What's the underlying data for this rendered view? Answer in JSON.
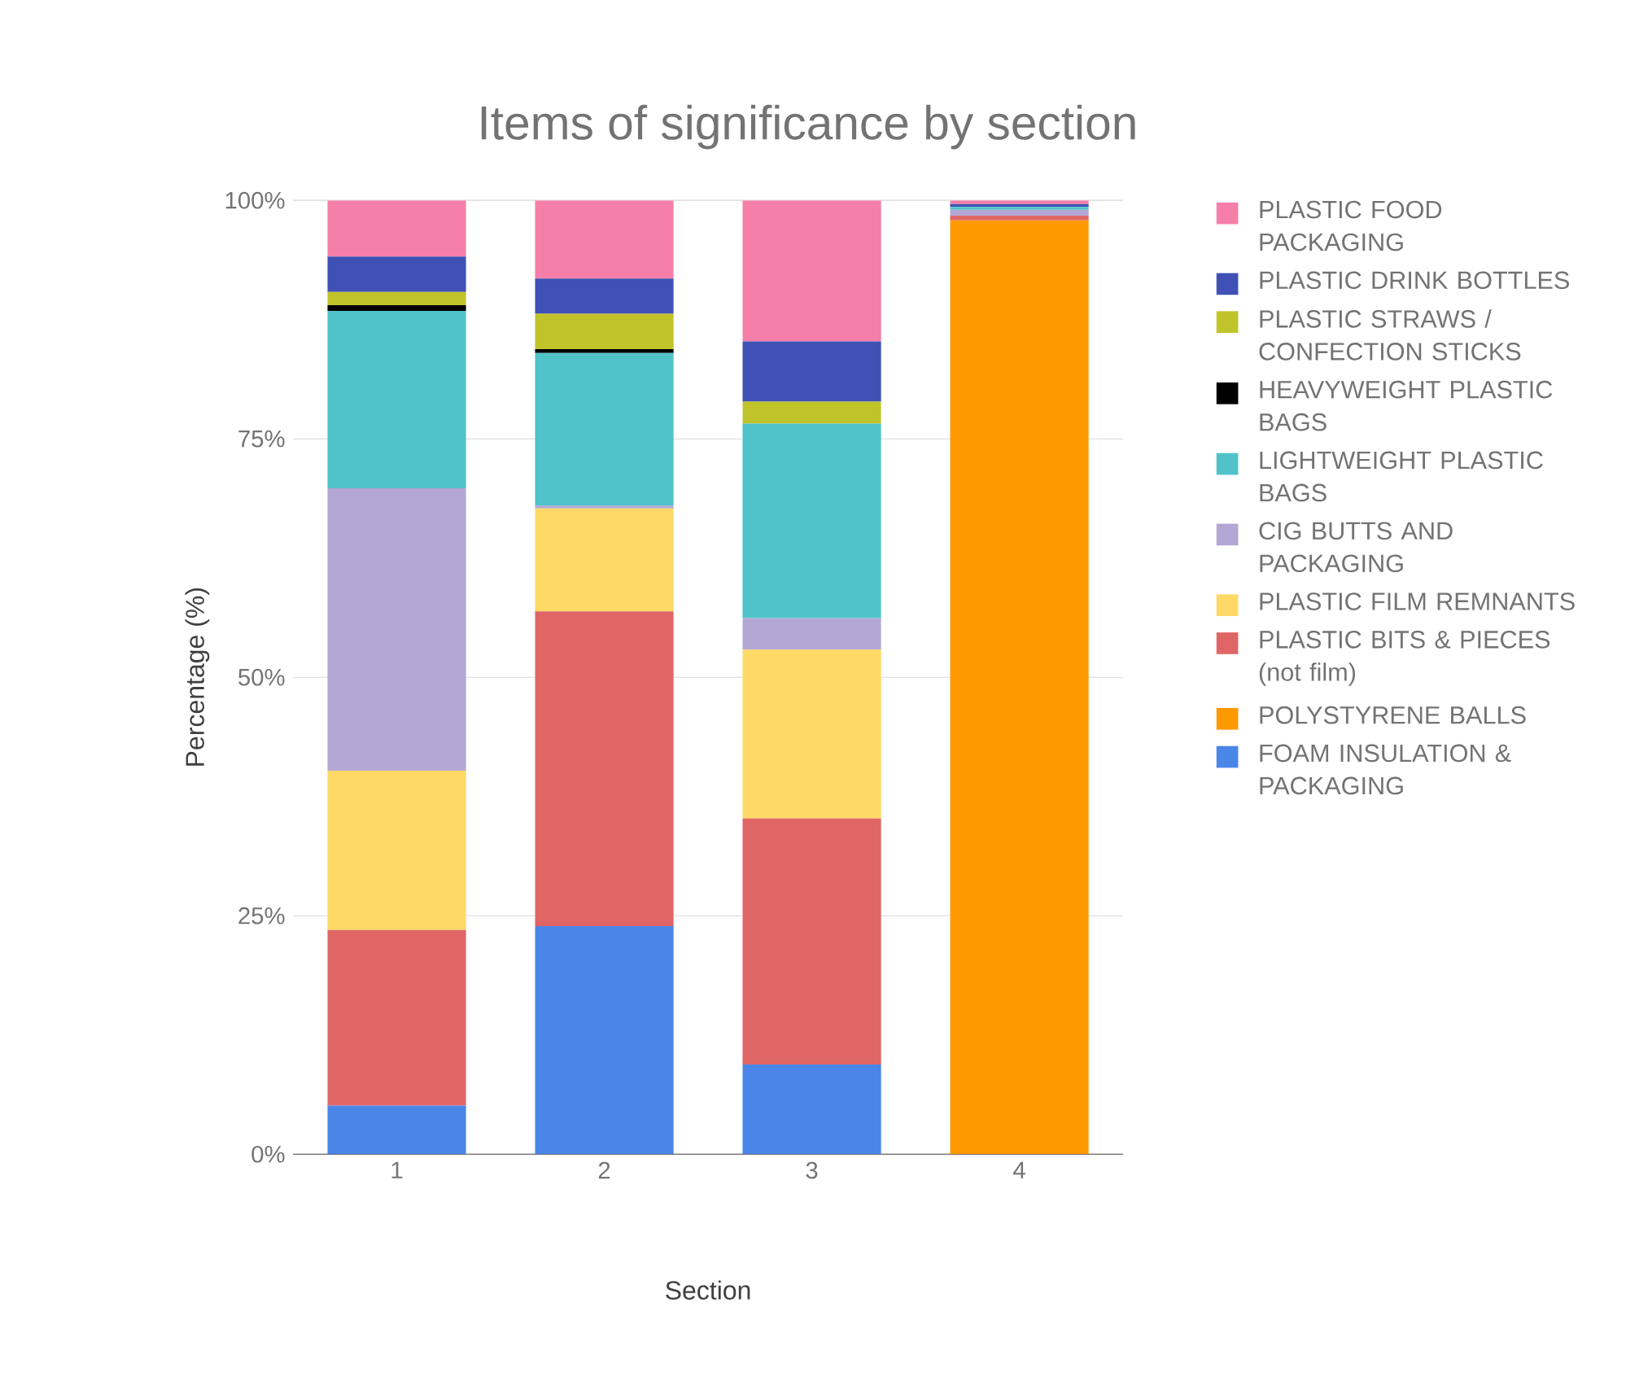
{
  "chart_data": {
    "type": "bar",
    "stacked": true,
    "title": "Items of significance by section",
    "xlabel": "Section",
    "ylabel": "Percentage (%)",
    "categories": [
      "1",
      "2",
      "3",
      "4"
    ],
    "ylim": [
      0,
      100
    ],
    "yticks": [
      {
        "value": 0,
        "label": "0%"
      },
      {
        "value": 25,
        "label": "25%"
      },
      {
        "value": 50,
        "label": "50%"
      },
      {
        "value": 75,
        "label": "75%"
      },
      {
        "value": 100,
        "label": "100%"
      }
    ],
    "grid": "y",
    "legend": "right",
    "series": [
      {
        "name": "FOAM INSULATION & PACKAGING",
        "color": "#4a86e8",
        "values": [
          5.1,
          23.9,
          9.4,
          0
        ]
      },
      {
        "name": "POLYSTYRENE BALLS",
        "color": "#ff9900",
        "values": [
          0,
          0,
          0,
          97.9
        ]
      },
      {
        "name": "PLASTIC BITS & PIECES (not film)",
        "color": "#e06666",
        "values": [
          18.4,
          33.0,
          25.8,
          0.5
        ]
      },
      {
        "name": "PLASTIC FILM REMNANTS",
        "color": "#ffd966",
        "values": [
          16.7,
          10.8,
          17.7,
          0
        ]
      },
      {
        "name": "CIG BUTTS AND PACKAGING",
        "color": "#b4a7d6",
        "values": [
          29.6,
          0.3,
          3.3,
          0.6
        ]
      },
      {
        "name": "LIGHTWEIGHT PLASTIC BAGS",
        "color": "#4fc3c9",
        "values": [
          18.6,
          16.0,
          20.4,
          0.3
        ]
      },
      {
        "name": "HEAVYWEIGHT PLASTIC BAGS",
        "color": "#000000",
        "values": [
          0.6,
          0.4,
          0,
          0
        ]
      },
      {
        "name": "PLASTIC STRAWS / CONFECTION STICKS",
        "color": "#c0c42a",
        "values": [
          1.4,
          3.7,
          2.3,
          0
        ]
      },
      {
        "name": "PLASTIC DRINK BOTTLES",
        "color": "#3f51b5",
        "values": [
          3.7,
          3.7,
          6.3,
          0.3
        ]
      },
      {
        "name": "PLASTIC FOOD PACKAGING",
        "color": "#f67fa9",
        "values": [
          5.9,
          8.2,
          14.8,
          0.4
        ]
      }
    ]
  }
}
